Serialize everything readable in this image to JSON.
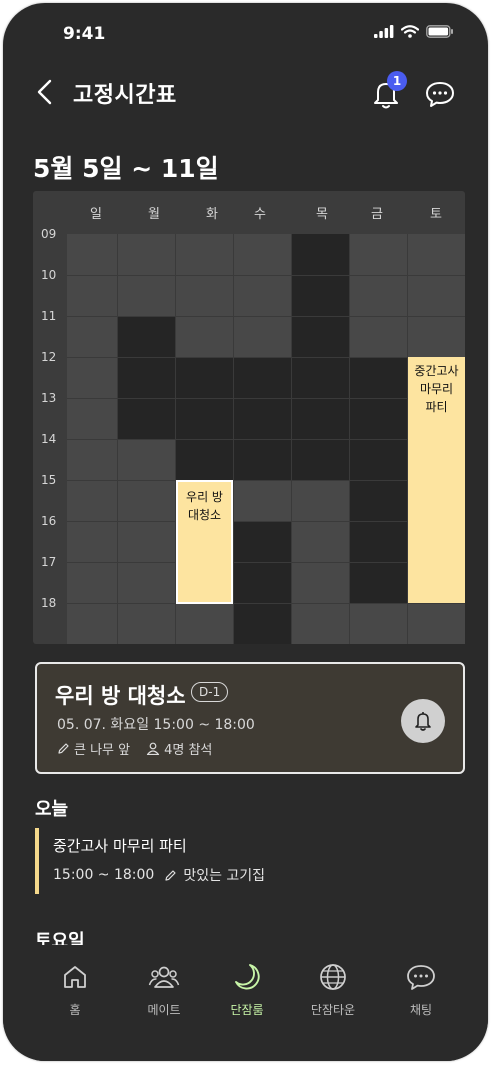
{
  "status_bar": {
    "time": "9:41"
  },
  "header": {
    "title": "고정시간표",
    "notification_count": "1"
  },
  "week": {
    "title": "5월 5일 ~ 11일"
  },
  "timetable": {
    "days": [
      "일",
      "월",
      "화",
      "수",
      "목",
      "금",
      "토"
    ],
    "hours": [
      "09",
      "10",
      "11",
      "12",
      "13",
      "14",
      "15",
      "16",
      "17",
      "18"
    ],
    "events": [
      {
        "title": "우리 방\n대청소"
      },
      {
        "title": "중간고사\n마무리\n파티"
      }
    ]
  },
  "upcoming": {
    "title": "우리 방 대청소",
    "dday": "D-1",
    "datetime": "05. 07. 화요일  15:00 ~ 18:00",
    "location": "큰 나무 앞",
    "attendees": "4명 참석"
  },
  "today": {
    "heading": "오늘",
    "event_title": "중간고사 마무리 파티",
    "event_time": "15:00 ~ 18:00",
    "event_location": "맛있는 고기집"
  },
  "saturday": {
    "heading": "토요일"
  },
  "tabs": [
    {
      "label": "홈",
      "icon": "home-icon"
    },
    {
      "label": "메이트",
      "icon": "people-icon"
    },
    {
      "label": "단잠룸",
      "icon": "moon-icon",
      "active": true
    },
    {
      "label": "단잠타운",
      "icon": "globe-icon"
    },
    {
      "label": "채팅",
      "icon": "chat-icon"
    }
  ],
  "colors": {
    "background": "#2a2a2a",
    "event": "#fde4a0",
    "badge": "#4a5cf0",
    "active_tab": "#c8f5a8"
  }
}
